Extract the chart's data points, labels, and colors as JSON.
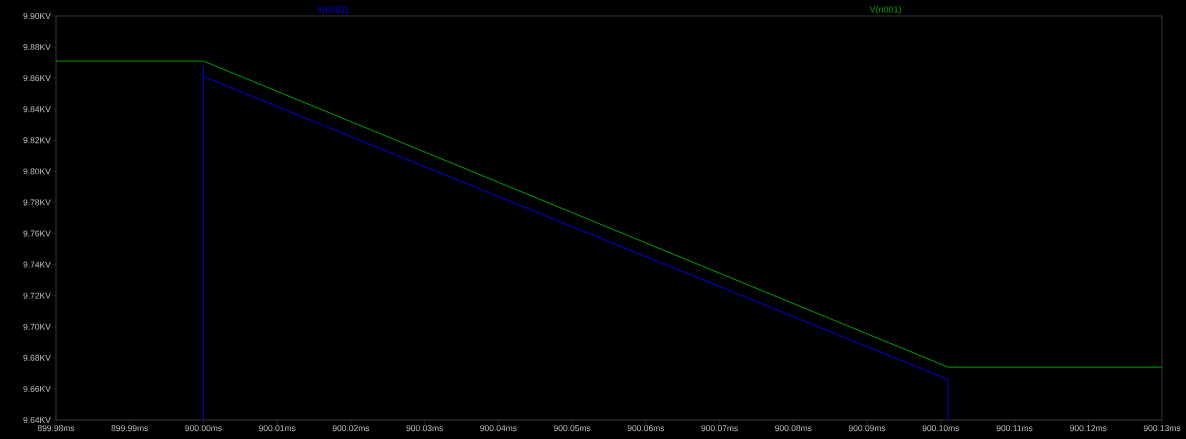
{
  "chart_data": {
    "type": "line",
    "xlim": [
      899.98,
      900.13
    ],
    "ylim": [
      9.64,
      9.9
    ],
    "xticks": [
      {
        "value": 899.98,
        "label": "899.98ms"
      },
      {
        "value": 899.99,
        "label": "899.99ms"
      },
      {
        "value": 900.0,
        "label": "900.00ms"
      },
      {
        "value": 900.01,
        "label": "900.01ms"
      },
      {
        "value": 900.02,
        "label": "900.02ms"
      },
      {
        "value": 900.03,
        "label": "900.03ms"
      },
      {
        "value": 900.04,
        "label": "900.04ms"
      },
      {
        "value": 900.05,
        "label": "900.05ms"
      },
      {
        "value": 900.06,
        "label": "900.06ms"
      },
      {
        "value": 900.07,
        "label": "900.07ms"
      },
      {
        "value": 900.08,
        "label": "900.08ms"
      },
      {
        "value": 900.09,
        "label": "900.09ms"
      },
      {
        "value": 900.1,
        "label": "900.10ms"
      },
      {
        "value": 900.11,
        "label": "900.11ms"
      },
      {
        "value": 900.12,
        "label": "900.12ms"
      },
      {
        "value": 900.13,
        "label": "900.13ms"
      }
    ],
    "yticks": [
      {
        "value": 9.64,
        "label": "9.64KV"
      },
      {
        "value": 9.66,
        "label": "9.66KV"
      },
      {
        "value": 9.68,
        "label": "9.68KV"
      },
      {
        "value": 9.7,
        "label": "9.70KV"
      },
      {
        "value": 9.72,
        "label": "9.72KV"
      },
      {
        "value": 9.74,
        "label": "9.74KV"
      },
      {
        "value": 9.76,
        "label": "9.76KV"
      },
      {
        "value": 9.78,
        "label": "9.78KV"
      },
      {
        "value": 9.8,
        "label": "9.80KV"
      },
      {
        "value": 9.82,
        "label": "9.82KV"
      },
      {
        "value": 9.84,
        "label": "9.84KV"
      },
      {
        "value": 9.86,
        "label": "9.86KV"
      },
      {
        "value": 9.88,
        "label": "9.88KV"
      },
      {
        "value": 9.9,
        "label": "9.90KV"
      }
    ],
    "legend": "top",
    "series": [
      {
        "name": "V(n002)",
        "color": "#0000e0",
        "x": [
          900.0,
          900.0,
          900.0,
          900.101,
          900.101
        ],
        "values": [
          9.64,
          9.868,
          9.861,
          9.666,
          9.64
        ]
      },
      {
        "name": "V(n001)",
        "color": "#00a000",
        "x": [
          899.98,
          900.0,
          900.101,
          900.13
        ],
        "values": [
          9.871,
          9.871,
          9.674,
          9.674
        ]
      }
    ]
  }
}
